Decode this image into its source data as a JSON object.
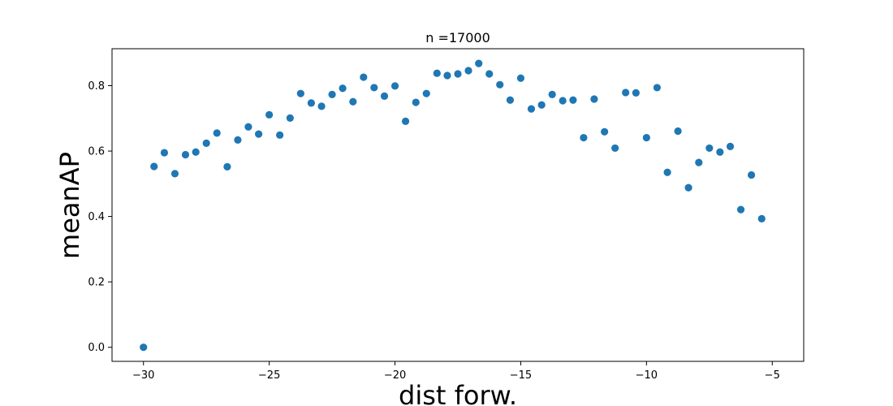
{
  "chart_data": {
    "type": "scatter",
    "title": "n =17000",
    "xlabel": "dist forw.",
    "ylabel": "meanAP",
    "xlim": [
      -31.25,
      -3.75
    ],
    "ylim": [
      -0.043,
      0.913
    ],
    "xticks": [
      -30,
      -25,
      -20,
      -15,
      -10,
      -5
    ],
    "yticks": [
      0.0,
      0.2,
      0.4,
      0.6,
      0.8
    ],
    "xtick_labels": [
      "−30",
      "−25",
      "−20",
      "−15",
      "−10",
      "−5"
    ],
    "ytick_labels": [
      "0.0",
      "0.2",
      "0.4",
      "0.6",
      "0.8"
    ],
    "grid": false,
    "marker_color": "#1f77b4",
    "points": [
      [
        -30.0,
        0.0
      ],
      [
        -29.58,
        0.553
      ],
      [
        -29.17,
        0.595
      ],
      [
        -28.75,
        0.531
      ],
      [
        -28.33,
        0.589
      ],
      [
        -27.92,
        0.597
      ],
      [
        -27.5,
        0.624
      ],
      [
        -27.08,
        0.655
      ],
      [
        -26.67,
        0.552
      ],
      [
        -26.25,
        0.634
      ],
      [
        -25.83,
        0.674
      ],
      [
        -25.42,
        0.652
      ],
      [
        -25.0,
        0.711
      ],
      [
        -24.58,
        0.649
      ],
      [
        -24.17,
        0.701
      ],
      [
        -23.75,
        0.776
      ],
      [
        -23.33,
        0.747
      ],
      [
        -22.92,
        0.737
      ],
      [
        -22.5,
        0.773
      ],
      [
        -22.08,
        0.792
      ],
      [
        -21.67,
        0.751
      ],
      [
        -21.25,
        0.826
      ],
      [
        -20.83,
        0.794
      ],
      [
        -20.42,
        0.768
      ],
      [
        -20.0,
        0.799
      ],
      [
        -19.58,
        0.691
      ],
      [
        -19.17,
        0.749
      ],
      [
        -18.75,
        0.776
      ],
      [
        -18.33,
        0.838
      ],
      [
        -17.92,
        0.831
      ],
      [
        -17.5,
        0.836
      ],
      [
        -17.08,
        0.846
      ],
      [
        -16.67,
        0.868
      ],
      [
        -16.25,
        0.836
      ],
      [
        -15.83,
        0.803
      ],
      [
        -15.42,
        0.756
      ],
      [
        -15.0,
        0.823
      ],
      [
        -14.58,
        0.729
      ],
      [
        -14.17,
        0.741
      ],
      [
        -13.75,
        0.773
      ],
      [
        -13.33,
        0.754
      ],
      [
        -12.92,
        0.756
      ],
      [
        -12.5,
        0.641
      ],
      [
        -12.08,
        0.759
      ],
      [
        -11.67,
        0.659
      ],
      [
        -11.25,
        0.609
      ],
      [
        -10.83,
        0.779
      ],
      [
        -10.42,
        0.778
      ],
      [
        -10.0,
        0.641
      ],
      [
        -9.58,
        0.794
      ],
      [
        -9.17,
        0.535
      ],
      [
        -8.75,
        0.661
      ],
      [
        -8.33,
        0.488
      ],
      [
        -7.92,
        0.565
      ],
      [
        -7.5,
        0.609
      ],
      [
        -7.08,
        0.597
      ],
      [
        -6.67,
        0.614
      ],
      [
        -6.25,
        0.421
      ],
      [
        -5.83,
        0.527
      ],
      [
        -5.42,
        0.393
      ]
    ]
  }
}
